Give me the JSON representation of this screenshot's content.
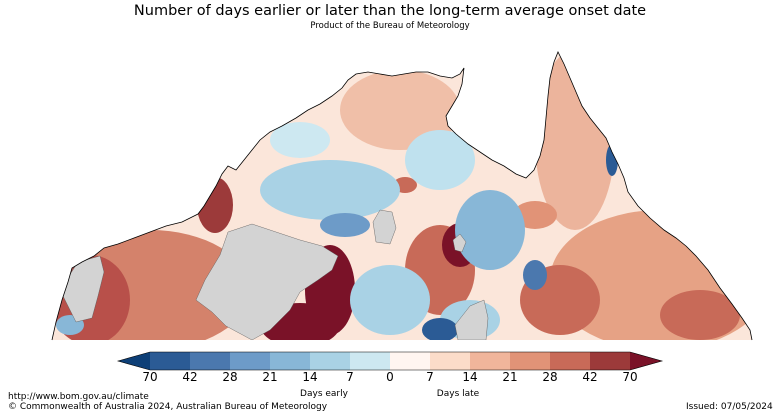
{
  "header": {
    "title": "Number of days earlier or later than the long-term average onset date",
    "subtitle": "Product of the Bureau of Meteorology"
  },
  "map": {
    "region": "Northern Australia",
    "no_data_color": "#d3d3d3",
    "coastline_color": "#000000"
  },
  "colorbar": {
    "ticks": [
      "70",
      "42",
      "28",
      "21",
      "14",
      "7",
      "0",
      "7",
      "14",
      "21",
      "28",
      "42",
      "70"
    ],
    "colors": [
      "#0d3f77",
      "#2b5b95",
      "#4b78ae",
      "#6d9bc8",
      "#88b7d7",
      "#a9d2e5",
      "#cde8f1",
      "#fff5f0",
      "#fbdcc9",
      "#f0b59b",
      "#e19377",
      "#c86a58",
      "#9c3a3a",
      "#7a1228"
    ],
    "early_label": "Days early",
    "late_label": "Days late"
  },
  "footer": {
    "url": "http://www.bom.gov.au/climate",
    "copyright": "© Commonwealth of Australia 2024, Australian Bureau of Meteorology",
    "issued": "Issued: 07/05/2024"
  }
}
